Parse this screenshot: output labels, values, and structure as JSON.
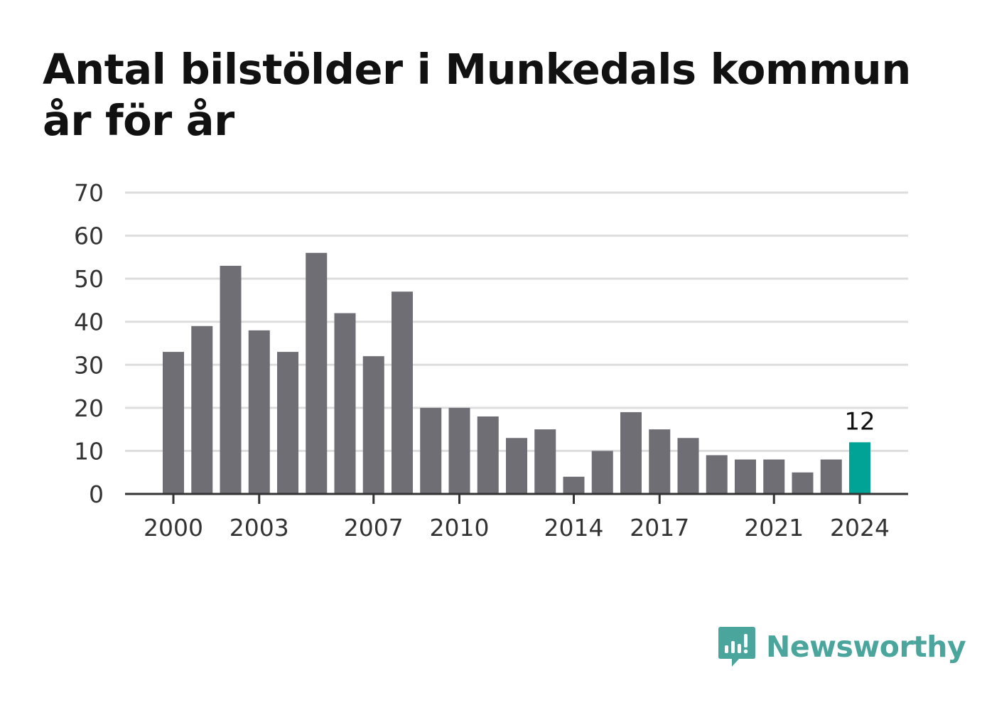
{
  "colors": {
    "bar": "#6f6e74",
    "highlight": "#00a396",
    "grid": "#dddddd",
    "axis": "#333333",
    "brand": "#4aa59c"
  },
  "brand": {
    "name": "Newsworthy",
    "icon": "chart-bubble-icon"
  },
  "chart_data": {
    "type": "bar",
    "title": "Antal bilstölder i Munkedals kommun år för år",
    "xlabel": "",
    "ylabel": "",
    "ylim": [
      0,
      70
    ],
    "yticks": [
      0,
      10,
      20,
      30,
      40,
      50,
      60,
      70
    ],
    "xticks": [
      "2000",
      "2003",
      "2007",
      "2010",
      "2014",
      "2017",
      "2021",
      "2024"
    ],
    "categories": [
      "2000",
      "2001",
      "2002",
      "2003",
      "2004",
      "2005",
      "2006",
      "2007",
      "2008",
      "2009",
      "2010",
      "2011",
      "2012",
      "2013",
      "2014",
      "2015",
      "2016",
      "2017",
      "2018",
      "2019",
      "2020",
      "2021",
      "2022",
      "2023",
      "2024"
    ],
    "values": [
      33,
      39,
      53,
      38,
      33,
      56,
      42,
      32,
      47,
      20,
      20,
      18,
      13,
      15,
      4,
      10,
      19,
      15,
      13,
      9,
      8,
      8,
      5,
      8,
      12
    ],
    "highlight": "2024",
    "highlight_label": "12",
    "grid": true,
    "legend": "none"
  }
}
